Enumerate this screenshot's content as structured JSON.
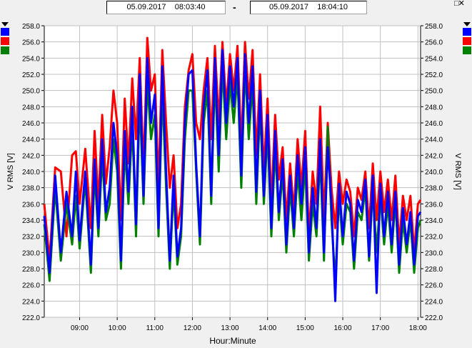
{
  "range": {
    "start": "05.09.2017    08:03:40",
    "separator": "-",
    "end": "05.09.2017    18:04:10"
  },
  "legend_colors": [
    "#0000ff",
    "#ff0000",
    "#008000"
  ],
  "chart_data": {
    "type": "line",
    "ylabel_left": "V RMS [V]",
    "ylabel_right": "V RMS [V]",
    "xlabel": "Hour:Minute",
    "ylim": [
      222.0,
      258.0
    ],
    "yticks": [
      "258.0",
      "256.0",
      "254.0",
      "252.0",
      "250.0",
      "248.0",
      "246.0",
      "244.0",
      "242.0",
      "240.0",
      "238.0",
      "236.0",
      "234.0",
      "232.0",
      "230.0",
      "228.0",
      "226.0",
      "224.0",
      "222.0"
    ],
    "xlim_hours": [
      8.06,
      18.07
    ],
    "xticks": [
      {
        "label": "09:00",
        "hour": 9
      },
      {
        "label": "10:00",
        "hour": 10
      },
      {
        "label": "11:00",
        "hour": 11
      },
      {
        "label": "12:00",
        "hour": 12
      },
      {
        "label": "13:00",
        "hour": 13
      },
      {
        "label": "14:00",
        "hour": 14
      },
      {
        "label": "15:00",
        "hour": 15
      },
      {
        "label": "16:00",
        "hour": 16
      },
      {
        "label": "17:00",
        "hour": 17
      },
      {
        "label": "18:00",
        "hour": 18
      }
    ],
    "grid": true,
    "series": [
      {
        "color": "#ff0000",
        "hour": [
          8.06,
          8.2,
          8.35,
          8.5,
          8.65,
          8.8,
          8.9,
          9.0,
          9.15,
          9.3,
          9.4,
          9.5,
          9.6,
          9.7,
          9.8,
          9.9,
          10.0,
          10.1,
          10.2,
          10.3,
          10.4,
          10.5,
          10.6,
          10.7,
          10.8,
          10.9,
          11.0,
          11.1,
          11.2,
          11.3,
          11.4,
          11.5,
          11.6,
          11.7,
          11.8,
          11.9,
          12.0,
          12.1,
          12.2,
          12.3,
          12.4,
          12.5,
          12.6,
          12.7,
          12.8,
          12.9,
          13.0,
          13.1,
          13.2,
          13.3,
          13.4,
          13.5,
          13.6,
          13.7,
          13.8,
          13.9,
          14.0,
          14.1,
          14.2,
          14.3,
          14.4,
          14.5,
          14.6,
          14.7,
          14.8,
          14.9,
          15.0,
          15.1,
          15.2,
          15.3,
          15.4,
          15.5,
          15.6,
          15.7,
          15.8,
          15.9,
          16.0,
          16.1,
          16.2,
          16.3,
          16.4,
          16.5,
          16.6,
          16.7,
          16.8,
          16.9,
          17.0,
          17.1,
          17.2,
          17.3,
          17.4,
          17.5,
          17.6,
          17.7,
          17.8,
          17.9,
          18.0,
          18.07
        ],
        "values": [
          236.0,
          229.0,
          240.5,
          240.0,
          232.0,
          242.0,
          242.5,
          236.0,
          242.8,
          233.0,
          245.0,
          236.0,
          247.0,
          238.5,
          243.0,
          250.0,
          246.0,
          234.0,
          249.0,
          241.0,
          251.5,
          244.0,
          254.0,
          240.0,
          256.5,
          250.0,
          252.0,
          238.0,
          255.0,
          246.0,
          238.0,
          242.0,
          233.0,
          236.0,
          248.0,
          252.5,
          254.5,
          246.0,
          244.0,
          250.0,
          254.0,
          244.0,
          255.5,
          246.0,
          256.0,
          248.0,
          254.5,
          250.0,
          255.5,
          243.0,
          256.0,
          249.0,
          255.0,
          242.0,
          252.0,
          240.0,
          249.0,
          236.0,
          247.0,
          239.0,
          243.0,
          234.0,
          241.0,
          235.0,
          244.0,
          238.0,
          245.0,
          232.0,
          240.0,
          236.0,
          248.0,
          234.0,
          246.0,
          238.0,
          233.0,
          240.0,
          236.0,
          239.0,
          237.5,
          232.0,
          238.0,
          236.5,
          240.0,
          233.0,
          241.0,
          234.0,
          240.0,
          235.0,
          239.0,
          234.0,
          239.5,
          231.0,
          237.0,
          234.0,
          237.0,
          230.0,
          236.0,
          236.5
        ]
      },
      {
        "color": "#008000",
        "hour": [
          8.06,
          8.2,
          8.35,
          8.5,
          8.65,
          8.8,
          8.9,
          9.0,
          9.15,
          9.3,
          9.4,
          9.5,
          9.6,
          9.7,
          9.8,
          9.9,
          10.0,
          10.1,
          10.2,
          10.3,
          10.4,
          10.5,
          10.6,
          10.7,
          10.8,
          10.9,
          11.0,
          11.1,
          11.2,
          11.3,
          11.4,
          11.5,
          11.6,
          11.7,
          11.8,
          11.9,
          12.0,
          12.1,
          12.2,
          12.3,
          12.4,
          12.5,
          12.6,
          12.7,
          12.8,
          12.9,
          13.0,
          13.1,
          13.2,
          13.3,
          13.4,
          13.5,
          13.6,
          13.7,
          13.8,
          13.9,
          14.0,
          14.1,
          14.2,
          14.3,
          14.4,
          14.5,
          14.6,
          14.7,
          14.8,
          14.9,
          15.0,
          15.1,
          15.2,
          15.3,
          15.4,
          15.5,
          15.6,
          15.7,
          15.8,
          15.9,
          16.0,
          16.1,
          16.2,
          16.3,
          16.4,
          16.5,
          16.6,
          16.7,
          16.8,
          16.9,
          17.0,
          17.1,
          17.2,
          17.3,
          17.4,
          17.5,
          17.6,
          17.7,
          17.8,
          17.9,
          18.0,
          18.07
        ],
        "values": [
          233.5,
          226.5,
          238.0,
          229.0,
          236.0,
          231.0,
          237.0,
          230.5,
          239.0,
          227.5,
          240.0,
          232.0,
          242.0,
          234.0,
          236.0,
          244.0,
          240.0,
          228.0,
          243.0,
          236.0,
          246.0,
          232.0,
          249.0,
          236.0,
          251.0,
          244.0,
          247.0,
          232.0,
          250.0,
          238.0,
          228.0,
          238.0,
          228.5,
          232.0,
          244.0,
          250.0,
          250.0,
          240.0,
          231.0,
          246.0,
          250.0,
          236.0,
          252.0,
          240.0,
          253.0,
          244.0,
          251.0,
          246.0,
          252.0,
          238.0,
          253.0,
          244.0,
          251.0,
          236.0,
          248.0,
          236.0,
          245.0,
          232.0,
          243.0,
          234.0,
          240.0,
          230.0,
          238.0,
          232.0,
          240.0,
          234.0,
          241.0,
          229.0,
          236.0,
          232.0,
          242.0,
          229.0,
          245.5,
          234.0,
          226.5,
          237.0,
          231.0,
          236.0,
          235.0,
          228.0,
          235.0,
          234.0,
          238.0,
          229.0,
          238.0,
          230.0,
          237.0,
          231.0,
          236.0,
          230.0,
          236.5,
          227.5,
          234.0,
          230.0,
          234.0,
          227.5,
          233.0,
          234.0
        ]
      },
      {
        "color": "#0000ff",
        "hour": [
          8.06,
          8.2,
          8.35,
          8.5,
          8.65,
          8.8,
          8.9,
          9.0,
          9.15,
          9.3,
          9.4,
          9.5,
          9.6,
          9.7,
          9.8,
          9.9,
          10.0,
          10.1,
          10.2,
          10.3,
          10.4,
          10.5,
          10.6,
          10.7,
          10.8,
          10.9,
          11.0,
          11.1,
          11.2,
          11.3,
          11.4,
          11.5,
          11.6,
          11.7,
          11.8,
          11.9,
          12.0,
          12.1,
          12.2,
          12.3,
          12.4,
          12.5,
          12.6,
          12.7,
          12.8,
          12.9,
          13.0,
          13.1,
          13.2,
          13.3,
          13.4,
          13.5,
          13.6,
          13.7,
          13.8,
          13.9,
          14.0,
          14.1,
          14.2,
          14.3,
          14.4,
          14.5,
          14.6,
          14.7,
          14.8,
          14.9,
          15.0,
          15.1,
          15.2,
          15.3,
          15.4,
          15.5,
          15.6,
          15.7,
          15.8,
          15.9,
          16.0,
          16.1,
          16.2,
          16.3,
          16.4,
          16.5,
          16.6,
          16.7,
          16.8,
          16.9,
          17.0,
          17.1,
          17.2,
          17.3,
          17.4,
          17.5,
          17.6,
          17.7,
          17.8,
          17.9,
          18.0,
          18.07
        ],
        "values": [
          234.5,
          227.5,
          239.5,
          230.0,
          237.5,
          232.0,
          240.0,
          231.5,
          240.0,
          228.5,
          241.5,
          233.0,
          244.0,
          235.0,
          238.0,
          246.0,
          242.0,
          229.0,
          245.0,
          237.5,
          248.0,
          233.5,
          252.0,
          237.0,
          254.0,
          246.0,
          249.5,
          233.0,
          253.0,
          240.0,
          229.0,
          239.5,
          229.5,
          233.0,
          246.0,
          252.0,
          252.5,
          241.0,
          232.0,
          248.0,
          252.5,
          237.0,
          254.0,
          242.0,
          255.0,
          246.0,
          253.0,
          248.0,
          254.0,
          239.5,
          254.5,
          246.0,
          253.0,
          237.5,
          250.0,
          237.0,
          247.0,
          233.0,
          245.0,
          235.0,
          241.5,
          231.0,
          239.5,
          233.0,
          242.0,
          236.0,
          243.0,
          230.0,
          238.0,
          233.0,
          244.0,
          230.0,
          243.0,
          236.0,
          224.0,
          238.5,
          232.0,
          237.5,
          236.0,
          229.0,
          236.5,
          235.0,
          239.0,
          229.5,
          239.5,
          225.0,
          238.5,
          232.0,
          237.5,
          231.0,
          237.5,
          228.5,
          235.5,
          231.0,
          235.0,
          228.5,
          234.5,
          235.0
        ]
      }
    ]
  }
}
